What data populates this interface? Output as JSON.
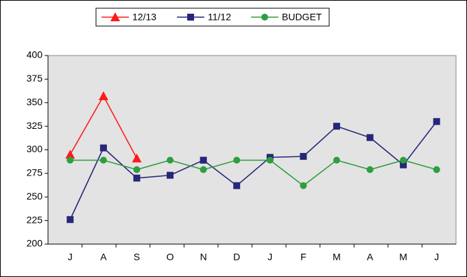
{
  "chart_data": {
    "type": "line",
    "categories": [
      "J",
      "A",
      "S",
      "O",
      "N",
      "D",
      "J",
      "F",
      "M",
      "A",
      "M",
      "J"
    ],
    "series": [
      {
        "name": "12/13",
        "color": "#ff1a1a",
        "marker": "triangle",
        "values": [
          295,
          357,
          291,
          null,
          null,
          null,
          null,
          null,
          null,
          null,
          null,
          null
        ]
      },
      {
        "name": "11/12",
        "color": "#26267a",
        "marker": "square",
        "values": [
          226,
          302,
          270,
          273,
          289,
          262,
          292,
          293,
          325,
          313,
          284,
          330
        ]
      },
      {
        "name": "BUDGET",
        "color": "#2e9e3e",
        "marker": "circle",
        "values": [
          289,
          289,
          279,
          289,
          279,
          289,
          289,
          262,
          289,
          279,
          289,
          279
        ]
      }
    ],
    "ylim": [
      200,
      400
    ],
    "yticks": [
      200,
      225,
      250,
      275,
      300,
      325,
      350,
      375,
      400
    ],
    "legend": "top",
    "plot_background": "#e3e3e3"
  }
}
